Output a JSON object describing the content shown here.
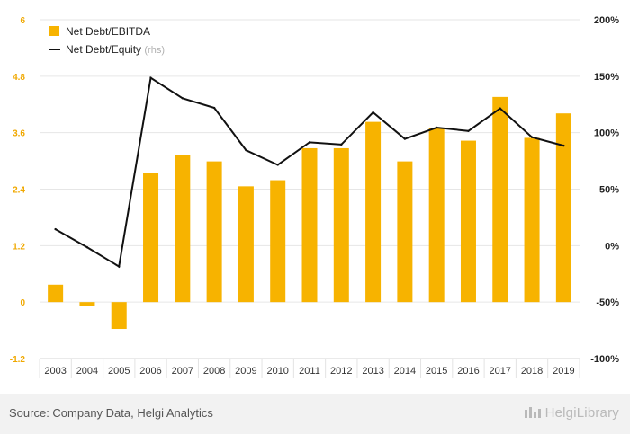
{
  "chart_data": {
    "type": "bar",
    "categories": [
      "2003",
      "2004",
      "2005",
      "2006",
      "2007",
      "2008",
      "2009",
      "2010",
      "2011",
      "2012",
      "2013",
      "2014",
      "2015",
      "2016",
      "2017",
      "2018",
      "2019"
    ],
    "series": [
      {
        "name": "Net Debt/EBITDA",
        "type": "bar",
        "axis": "left",
        "color": "#f7b300",
        "values": [
          0.37,
          -0.09,
          -0.57,
          2.74,
          3.13,
          2.99,
          2.46,
          2.59,
          3.27,
          3.27,
          3.83,
          2.99,
          3.7,
          3.43,
          4.36,
          3.49,
          4.01
        ]
      },
      {
        "name": "Net Debt/Equity",
        "name_suffix": "(rhs)",
        "type": "line",
        "axis": "right",
        "color": "#111111",
        "values": [
          14.5,
          -1.5,
          -18.5,
          148.5,
          130.5,
          122.0,
          84.5,
          71.5,
          91.5,
          89.5,
          118.0,
          94.5,
          104.5,
          101.5,
          121.5,
          96.0,
          88.5
        ]
      }
    ],
    "y_left": {
      "min": -1.2,
      "max": 6,
      "ticks": [
        "-1.2",
        "0",
        "1.2",
        "2.4",
        "3.6",
        "4.8",
        "6"
      ]
    },
    "y_right": {
      "min": -100,
      "max": 200,
      "ticks": [
        "-100%",
        "-50%",
        "0%",
        "50%",
        "100%",
        "150%",
        "200%"
      ]
    },
    "grid": true,
    "legend": "top-left",
    "tick_color": "#f0a800"
  },
  "footer": {
    "source": "Source: Company Data, Helgi Analytics",
    "brand": "HelgiLibrary"
  }
}
